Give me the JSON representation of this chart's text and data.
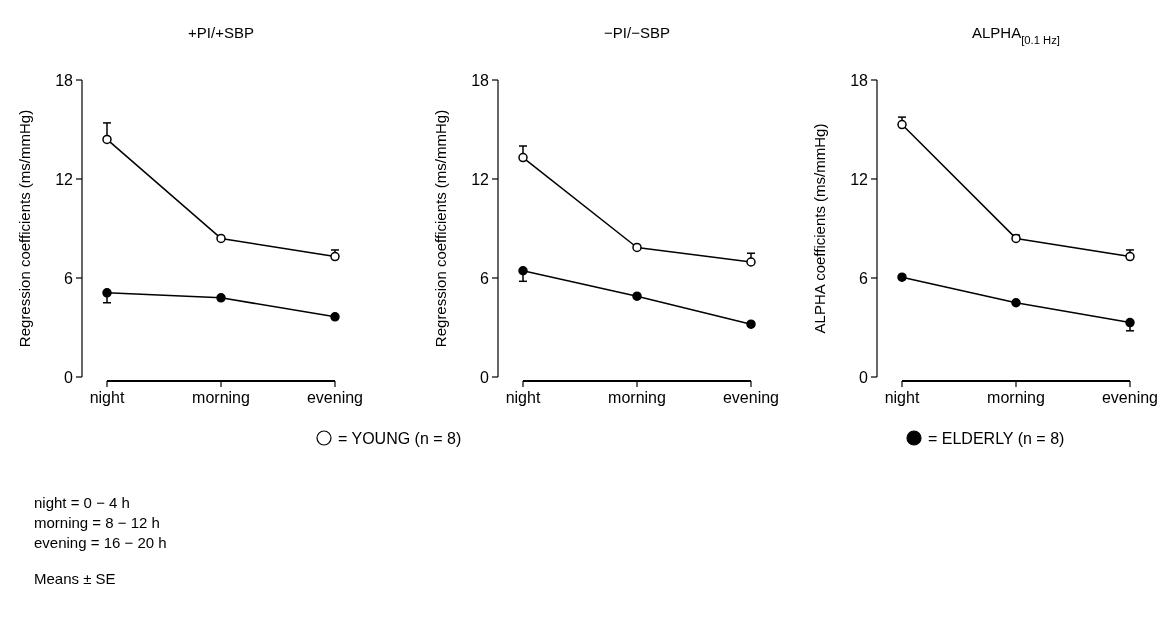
{
  "chart_data": [
    {
      "type": "line",
      "title": "+PI/+SBP",
      "ylabel": "Regression coefficients (ms/mmHg)",
      "categories": [
        "night",
        "morning",
        "evening"
      ],
      "ylim": [
        0,
        18
      ],
      "yticks": [
        0,
        6,
        12,
        18
      ],
      "marker": "circle",
      "legend": "bottom",
      "grid": false,
      "series": [
        {
          "name": "= YOUNG (n = 8)",
          "color": "#ffffff",
          "values": [
            14.4,
            8.4,
            7.3
          ],
          "errors": [
            [
              14.4,
              15.4
            ],
            null,
            [
              7.3,
              7.7
            ]
          ]
        },
        {
          "name": "= ELDERLY (n = 8)",
          "color": "#000000",
          "values": [
            5.1,
            4.8,
            3.65
          ],
          "errors": [
            [
              4.5,
              5.1
            ],
            null,
            null
          ]
        }
      ],
      "annotations": [
        "night = 0 − 4 h",
        "morning = 8 − 12 h",
        "evening = 16 − 20 h",
        "Means ± SE"
      ]
    },
    {
      "type": "line",
      "title": "−PI/−SBP",
      "ylabel": "Regression coefficients (ms/mmHg)",
      "categories": [
        "night",
        "morning",
        "evening"
      ],
      "ylim": [
        0,
        18
      ],
      "yticks": [
        0,
        6,
        12,
        18
      ],
      "marker": "circle",
      "grid": false,
      "series": [
        {
          "color": "#ffffff",
          "values": [
            13.3,
            7.85,
            6.97
          ],
          "errors": [
            [
              13.3,
              14.0
            ],
            null,
            [
              6.97,
              7.5
            ]
          ]
        },
        {
          "color": "#000000",
          "values": [
            6.44,
            4.9,
            3.2
          ],
          "errors": [
            [
              5.8,
              6.44
            ],
            null,
            null
          ]
        }
      ]
    },
    {
      "type": "line",
      "title": "ALPHA$_{[0.1 Hz]}$",
      "ylabel": "ALPHA coefficients (ms/mmHg)",
      "categories": [
        "night",
        "morning",
        "evening"
      ],
      "ylim": [
        0,
        18
      ],
      "yticks": [
        0,
        6,
        12,
        18
      ],
      "marker": "circle",
      "grid": false,
      "series": [
        {
          "color": "#ffffff",
          "values": [
            15.3,
            8.4,
            7.3
          ],
          "errors": [
            [
              15.3,
              15.75
            ],
            [
              8.4,
              8.6
            ],
            [
              7.3,
              7.7
            ]
          ]
        },
        {
          "color": "#000000",
          "values": [
            6.05,
            4.5,
            3.3
          ],
          "errors": [
            null,
            null,
            [
              2.8,
              3.3
            ]
          ]
        }
      ]
    }
  ]
}
